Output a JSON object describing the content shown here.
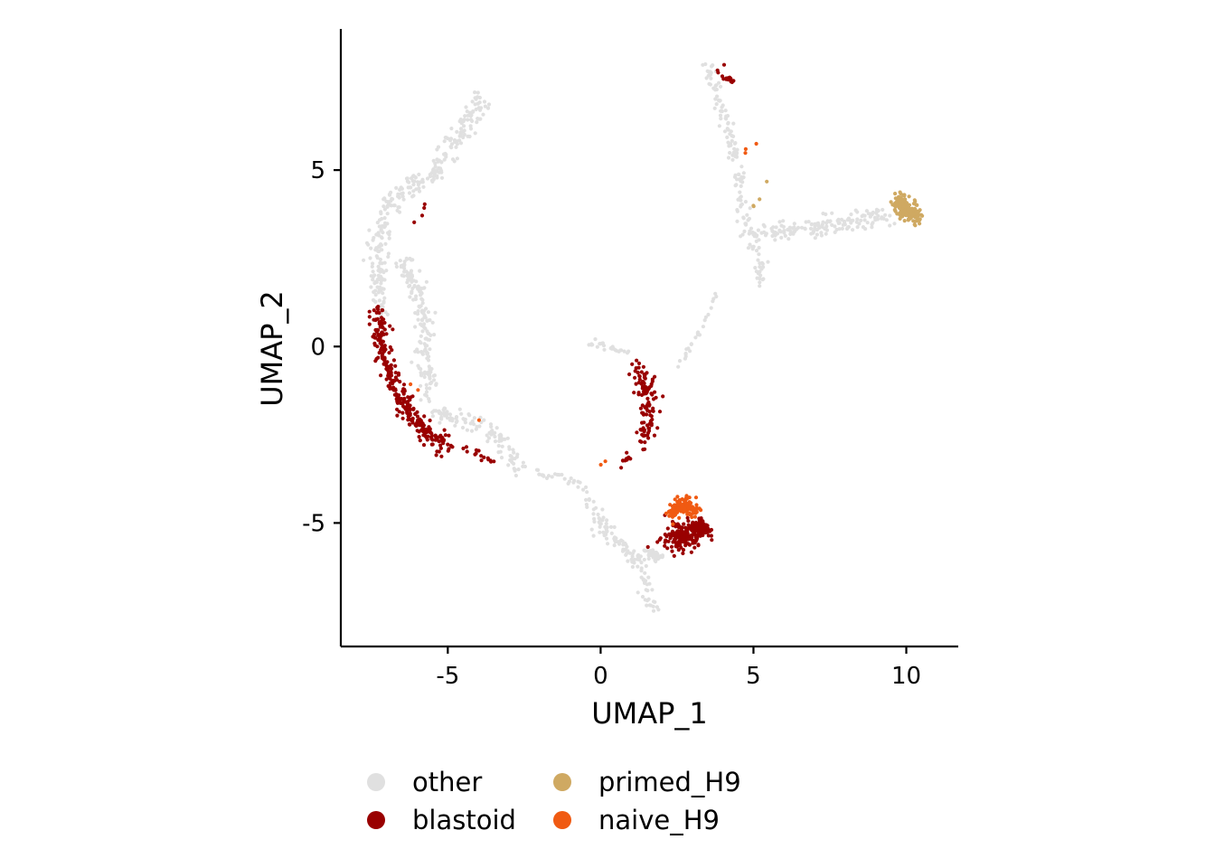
{
  "chart_data": {
    "type": "scatter",
    "xlabel": "UMAP_1",
    "ylabel": "UMAP_2",
    "xlim": [
      -8.5,
      11.7
    ],
    "ylim": [
      -8.5,
      9.0
    ],
    "xticks": [
      -5,
      0,
      5,
      10
    ],
    "xtick_labels": [
      "-5",
      "0",
      "5",
      "10"
    ],
    "yticks": [
      -5,
      0,
      5
    ],
    "ytick_labels": [
      "-5",
      "0",
      "5"
    ],
    "grid": false,
    "legend_position": "bottom",
    "legend": [
      {
        "name": "other",
        "color": "#E0E0E0"
      },
      {
        "name": "blastoid",
        "color": "#990000"
      },
      {
        "name": "primed_H9",
        "color": "#CFA962"
      },
      {
        "name": "naive_H9",
        "color": "#F05A12"
      }
    ],
    "series": [
      {
        "name": "other",
        "color": "#E0E0E0",
        "clusters": [
          {
            "path": [
              [
                -3.9,
                7.0
              ],
              [
                -4.6,
                6.0
              ],
              [
                -5.3,
                5.0
              ],
              [
                -6.2,
                4.5
              ],
              [
                -7.0,
                4.0
              ],
              [
                -7.2,
                3.0
              ],
              [
                -7.3,
                2.0
              ],
              [
                -7.2,
                1.0
              ]
            ],
            "n": 300,
            "spread": 0.28
          },
          {
            "path": [
              [
                -6.5,
                2.5
              ],
              [
                -5.9,
                1.5
              ],
              [
                -5.7,
                0.5
              ],
              [
                -5.8,
                -0.5
              ],
              [
                -5.5,
                -1.5
              ]
            ],
            "n": 170,
            "spread": 0.25
          },
          {
            "path": [
              [
                -5.5,
                -1.8
              ],
              [
                -4.5,
                -2.1
              ],
              [
                -3.5,
                -2.4
              ],
              [
                -3.0,
                -3.0
              ],
              [
                -2.6,
                -3.5
              ]
            ],
            "n": 110,
            "spread": 0.22
          },
          {
            "path": [
              [
                -2.2,
                -3.6
              ],
              [
                -1.2,
                -3.7
              ],
              [
                -0.5,
                -4.0
              ]
            ],
            "n": 25,
            "spread": 0.08
          },
          {
            "path": [
              [
                -0.4,
                -4.3
              ],
              [
                0.2,
                -5.3
              ],
              [
                0.8,
                -5.7
              ],
              [
                1.3,
                -6.3
              ],
              [
                1.6,
                -7.2
              ],
              [
                1.7,
                -7.5
              ]
            ],
            "n": 110,
            "spread": 0.2
          },
          {
            "path": [
              [
                -0.4,
                0.1
              ],
              [
                0.3,
                0.0
              ],
              [
                0.9,
                -0.2
              ]
            ],
            "n": 25,
            "spread": 0.08
          },
          {
            "path": [
              [
                2.5,
                -0.6
              ],
              [
                3.3,
                0.5
              ],
              [
                3.8,
                1.5
              ]
            ],
            "n": 25,
            "spread": 0.05
          },
          {
            "path": [
              [
                3.5,
                8.0
              ],
              [
                4.1,
                6.5
              ],
              [
                4.5,
                5.0
              ],
              [
                4.6,
                4.0
              ],
              [
                4.8,
                3.3
              ]
            ],
            "n": 110,
            "spread": 0.17
          },
          {
            "path": [
              [
                4.8,
                3.2
              ],
              [
                6.5,
                3.3
              ],
              [
                8.0,
                3.5
              ],
              [
                9.5,
                3.7
              ]
            ],
            "n": 160,
            "spread": 0.22
          },
          {
            "path": [
              [
                5.0,
                3.0
              ],
              [
                5.3,
                2.3
              ],
              [
                5.1,
                1.8
              ]
            ],
            "n": 30,
            "spread": 0.18
          },
          {
            "path": [
              [
                1.5,
                -5.8
              ],
              [
                2.0,
                -6.0
              ]
            ],
            "n": 40,
            "spread": 0.12
          }
        ]
      },
      {
        "name": "blastoid",
        "color": "#990000",
        "clusters": [
          {
            "path": [
              [
                -7.3,
                1.0
              ],
              [
                -7.2,
                0.0
              ],
              [
                -6.8,
                -1.0
              ],
              [
                -6.2,
                -2.0
              ],
              [
                -5.6,
                -2.5
              ],
              [
                -5.0,
                -2.8
              ]
            ],
            "n": 280,
            "spread": 0.26
          },
          {
            "path": [
              [
                -4.5,
                -2.9
              ],
              [
                -4.0,
                -3.0
              ],
              [
                -3.5,
                -3.3
              ]
            ],
            "n": 15,
            "spread": 0.15
          },
          {
            "path": [
              [
                1.2,
                -0.5
              ],
              [
                1.5,
                -1.2
              ],
              [
                1.6,
                -2.0
              ],
              [
                1.4,
                -2.7
              ]
            ],
            "n": 110,
            "spread": 0.25
          },
          {
            "path": [
              [
                0.7,
                -3.3
              ],
              [
                1.0,
                -3.1
              ]
            ],
            "n": 10,
            "spread": 0.1
          },
          {
            "path": [
              [
                2.2,
                -5.5
              ],
              [
                2.9,
                -5.3
              ],
              [
                3.5,
                -5.1
              ]
            ],
            "n": 230,
            "spread": 0.32
          },
          {
            "path": [
              [
                4.0,
                7.6
              ],
              [
                4.4,
                7.5
              ]
            ],
            "n": 15,
            "spread": 0.08
          },
          {
            "path": [
              [
                3.9,
                7.8
              ],
              [
                4.0,
                7.9
              ]
            ],
            "n": 3,
            "spread": 0.1
          },
          {
            "path": [
              [
                -6.0,
                3.3
              ],
              [
                -5.8,
                3.9
              ]
            ],
            "n": 4,
            "spread": 0.15
          },
          {
            "path": [
              [
                1.4,
                -6.9
              ],
              [
                4.6,
                2.8
              ]
            ],
            "n": 2,
            "spread": 0.05
          }
        ]
      },
      {
        "name": "primed_H9",
        "color": "#CFA962",
        "clusters": [
          {
            "path": [
              [
                9.7,
                4.1
              ],
              [
                10.3,
                3.7
              ]
            ],
            "n": 200,
            "spread": 0.22
          },
          {
            "path": [
              [
                5.0,
                3.7
              ],
              [
                5.3,
                5.0
              ]
            ],
            "n": 4,
            "spread": 0.15
          }
        ]
      },
      {
        "name": "naive_H9",
        "color": "#F05A12",
        "clusters": [
          {
            "path": [
              [
                2.3,
                -4.7
              ],
              [
                2.7,
                -4.4
              ],
              [
                3.1,
                -4.7
              ]
            ],
            "n": 130,
            "spread": 0.2
          },
          {
            "path": [
              [
                -6.2,
                -1.1
              ],
              [
                -3.8,
                -2.2
              ]
            ],
            "n": 3,
            "spread": 0.05
          },
          {
            "path": [
              [
                -1.8,
                -3.5
              ],
              [
                0.2,
                -3.3
              ]
            ],
            "n": 2,
            "spread": 0.05
          },
          {
            "path": [
              [
                4.6,
                5.3
              ],
              [
                5.1,
                5.8
              ]
            ],
            "n": 3,
            "spread": 0.1
          }
        ]
      }
    ]
  }
}
